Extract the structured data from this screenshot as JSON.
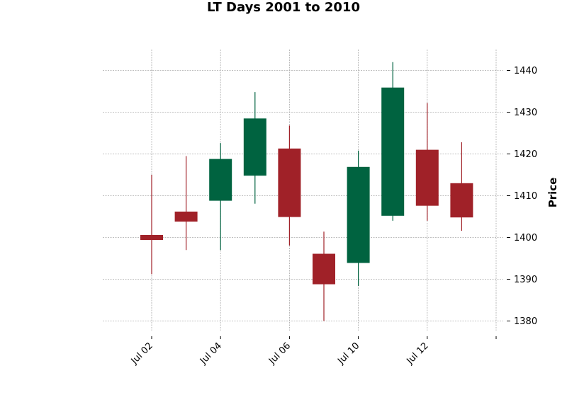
{
  "chart_data": {
    "type": "candlestick",
    "title": "LT Days 2001 to 2010",
    "xlabel": "",
    "ylabel": "Price",
    "ylim": [
      1377,
      1445
    ],
    "yticks": [
      1380,
      1390,
      1400,
      1410,
      1420,
      1430,
      1440
    ],
    "grid": true,
    "legend": "none",
    "x_tick_labels": [
      "Jul 02",
      "Jul 04",
      "Jul 06",
      "Jul 10",
      "Jul 12",
      ""
    ],
    "x_tick_index": [
      0,
      2,
      4,
      6,
      8,
      10
    ],
    "up_color": "#006340",
    "down_color": "#a02128",
    "candles": [
      {
        "open": 1400.6,
        "high": 1415.0,
        "low": 1391.2,
        "close": 1399.4
      },
      {
        "open": 1406.2,
        "high": 1419.5,
        "low": 1397.0,
        "close": 1403.8
      },
      {
        "open": 1408.8,
        "high": 1422.6,
        "low": 1397.0,
        "close": 1418.8
      },
      {
        "open": 1414.8,
        "high": 1434.8,
        "low": 1408.1,
        "close": 1428.5
      },
      {
        "open": 1421.3,
        "high": 1426.8,
        "low": 1398.1,
        "close": 1404.9
      },
      {
        "open": 1396.1,
        "high": 1401.4,
        "low": 1380.0,
        "close": 1388.8
      },
      {
        "open": 1393.9,
        "high": 1420.8,
        "low": 1388.4,
        "close": 1416.9
      },
      {
        "open": 1405.2,
        "high": 1442.0,
        "low": 1404.0,
        "close": 1435.9
      },
      {
        "open": 1421.0,
        "high": 1432.2,
        "low": 1404.0,
        "close": 1407.6
      },
      {
        "open": 1413.0,
        "high": 1422.8,
        "low": 1401.6,
        "close": 1404.8
      }
    ]
  }
}
